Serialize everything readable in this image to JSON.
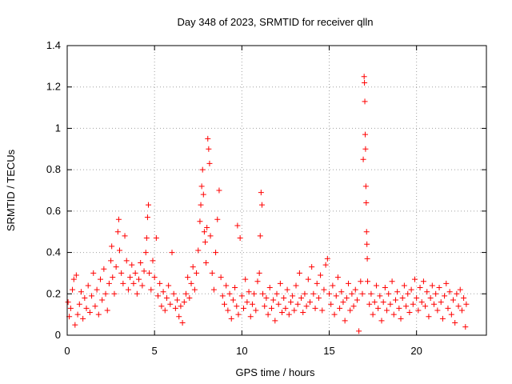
{
  "colors": {
    "series": "#ff0000",
    "axis": "#000000",
    "grid": "#a0a0a0",
    "background": "#ffffff"
  },
  "chart_data": {
    "type": "scatter",
    "title": "Day 348 of 2023, SRMTID for receiver qlln",
    "xlabel": "GPS time / hours",
    "ylabel": "SRMTID / TECUs",
    "xlim": [
      0,
      24
    ],
    "ylim": [
      0,
      1.4
    ],
    "xticks": [
      0,
      5,
      10,
      15,
      20
    ],
    "xtick_labels": [
      "0",
      "5",
      "10",
      "15",
      "20"
    ],
    "yticks": [
      0,
      0.2,
      0.4,
      0.6,
      0.8,
      1,
      1.2,
      1.4
    ],
    "ytick_labels": [
      "0",
      "0.2",
      "0.4",
      "0.6",
      "0.8",
      "1",
      "1.2",
      "1.4"
    ],
    "grid": true,
    "marker": "plus",
    "series": [
      {
        "name": "SRMTID",
        "points": [
          [
            0.05,
            0.16
          ],
          [
            0.12,
            0.09
          ],
          [
            0.2,
            0.13
          ],
          [
            0.3,
            0.22
          ],
          [
            0.38,
            0.27
          ],
          [
            0.45,
            0.05
          ],
          [
            0.52,
            0.29
          ],
          [
            0.6,
            0.1
          ],
          [
            0.7,
            0.15
          ],
          [
            0.8,
            0.21
          ],
          [
            0.9,
            0.08
          ],
          [
            1.0,
            0.18
          ],
          [
            1.1,
            0.13
          ],
          [
            1.2,
            0.24
          ],
          [
            1.3,
            0.11
          ],
          [
            1.4,
            0.19
          ],
          [
            1.5,
            0.3
          ],
          [
            1.6,
            0.14
          ],
          [
            1.7,
            0.22
          ],
          [
            1.8,
            0.1
          ],
          [
            1.9,
            0.27
          ],
          [
            2.0,
            0.17
          ],
          [
            2.1,
            0.32
          ],
          [
            2.2,
            0.2
          ],
          [
            2.3,
            0.12
          ],
          [
            2.4,
            0.25
          ],
          [
            2.5,
            0.36
          ],
          [
            2.55,
            0.43
          ],
          [
            2.6,
            0.28
          ],
          [
            2.7,
            0.2
          ],
          [
            2.8,
            0.33
          ],
          [
            2.9,
            0.5
          ],
          [
            2.95,
            0.56
          ],
          [
            3.0,
            0.41
          ],
          [
            3.1,
            0.3
          ],
          [
            3.2,
            0.25
          ],
          [
            3.3,
            0.48
          ],
          [
            3.4,
            0.36
          ],
          [
            3.5,
            0.22
          ],
          [
            3.6,
            0.28
          ],
          [
            3.7,
            0.34
          ],
          [
            3.8,
            0.25
          ],
          [
            3.9,
            0.3
          ],
          [
            4.0,
            0.2
          ],
          [
            4.1,
            0.27
          ],
          [
            4.2,
            0.35
          ],
          [
            4.3,
            0.24
          ],
          [
            4.4,
            0.31
          ],
          [
            4.5,
            0.4
          ],
          [
            4.55,
            0.47
          ],
          [
            4.6,
            0.57
          ],
          [
            4.65,
            0.63
          ],
          [
            4.7,
            0.3
          ],
          [
            4.8,
            0.22
          ],
          [
            4.9,
            0.36
          ],
          [
            5.0,
            0.28
          ],
          [
            5.1,
            0.47
          ],
          [
            5.2,
            0.19
          ],
          [
            5.3,
            0.25
          ],
          [
            5.4,
            0.14
          ],
          [
            5.5,
            0.21
          ],
          [
            5.6,
            0.12
          ],
          [
            5.7,
            0.18
          ],
          [
            5.8,
            0.24
          ],
          [
            5.9,
            0.15
          ],
          [
            6.0,
            0.4
          ],
          [
            6.1,
            0.2
          ],
          [
            6.2,
            0.13
          ],
          [
            6.3,
            0.17
          ],
          [
            6.4,
            0.09
          ],
          [
            6.5,
            0.14
          ],
          [
            6.6,
            0.06
          ],
          [
            6.7,
            0.16
          ],
          [
            6.8,
            0.2
          ],
          [
            6.9,
            0.28
          ],
          [
            7.0,
            0.18
          ],
          [
            7.1,
            0.25
          ],
          [
            7.2,
            0.33
          ],
          [
            7.3,
            0.22
          ],
          [
            7.4,
            0.3
          ],
          [
            7.5,
            0.41
          ],
          [
            7.6,
            0.55
          ],
          [
            7.65,
            0.63
          ],
          [
            7.7,
            0.72
          ],
          [
            7.75,
            0.8
          ],
          [
            7.8,
            0.68
          ],
          [
            7.85,
            0.5
          ],
          [
            7.9,
            0.45
          ],
          [
            7.95,
            0.35
          ],
          [
            8.0,
            0.52
          ],
          [
            8.05,
            0.95
          ],
          [
            8.1,
            0.9
          ],
          [
            8.15,
            0.83
          ],
          [
            8.2,
            0.48
          ],
          [
            8.3,
            0.3
          ],
          [
            8.4,
            0.22
          ],
          [
            8.5,
            0.4
          ],
          [
            8.6,
            0.56
          ],
          [
            8.7,
            0.7
          ],
          [
            8.8,
            0.28
          ],
          [
            8.9,
            0.19
          ],
          [
            9.0,
            0.15
          ],
          [
            9.1,
            0.24
          ],
          [
            9.2,
            0.12
          ],
          [
            9.3,
            0.2
          ],
          [
            9.4,
            0.08
          ],
          [
            9.5,
            0.17
          ],
          [
            9.6,
            0.23
          ],
          [
            9.7,
            0.14
          ],
          [
            9.75,
            0.53
          ],
          [
            9.8,
            0.1
          ],
          [
            9.9,
            0.47
          ],
          [
            10.0,
            0.19
          ],
          [
            10.1,
            0.13
          ],
          [
            10.2,
            0.27
          ],
          [
            10.3,
            0.16
          ],
          [
            10.4,
            0.21
          ],
          [
            10.5,
            0.09
          ],
          [
            10.6,
            0.15
          ],
          [
            10.7,
            0.2
          ],
          [
            10.8,
            0.12
          ],
          [
            10.9,
            0.26
          ],
          [
            11.0,
            0.3
          ],
          [
            11.05,
            0.48
          ],
          [
            11.1,
            0.69
          ],
          [
            11.15,
            0.63
          ],
          [
            11.2,
            0.2
          ],
          [
            11.3,
            0.14
          ],
          [
            11.4,
            0.18
          ],
          [
            11.5,
            0.1
          ],
          [
            11.6,
            0.23
          ],
          [
            11.7,
            0.13
          ],
          [
            11.8,
            0.17
          ],
          [
            11.9,
            0.07
          ],
          [
            12.0,
            0.2
          ],
          [
            12.1,
            0.15
          ],
          [
            12.2,
            0.25
          ],
          [
            12.3,
            0.11
          ],
          [
            12.4,
            0.18
          ],
          [
            12.5,
            0.13
          ],
          [
            12.6,
            0.22
          ],
          [
            12.7,
            0.1
          ],
          [
            12.8,
            0.16
          ],
          [
            12.9,
            0.19
          ],
          [
            13.0,
            0.12
          ],
          [
            13.1,
            0.24
          ],
          [
            13.2,
            0.15
          ],
          [
            13.3,
            0.3
          ],
          [
            13.4,
            0.18
          ],
          [
            13.5,
            0.11
          ],
          [
            13.6,
            0.2
          ],
          [
            13.7,
            0.14
          ],
          [
            13.8,
            0.27
          ],
          [
            13.9,
            0.16
          ],
          [
            14.0,
            0.33
          ],
          [
            14.1,
            0.2
          ],
          [
            14.2,
            0.13
          ],
          [
            14.3,
            0.25
          ],
          [
            14.4,
            0.18
          ],
          [
            14.5,
            0.29
          ],
          [
            14.6,
            0.12
          ],
          [
            14.7,
            0.22
          ],
          [
            14.8,
            0.34
          ],
          [
            14.9,
            0.37
          ],
          [
            15.0,
            0.2
          ],
          [
            15.1,
            0.15
          ],
          [
            15.2,
            0.24
          ],
          [
            15.3,
            0.1
          ],
          [
            15.4,
            0.19
          ],
          [
            15.5,
            0.28
          ],
          [
            15.6,
            0.13
          ],
          [
            15.7,
            0.21
          ],
          [
            15.8,
            0.16
          ],
          [
            15.9,
            0.07
          ],
          [
            16.0,
            0.18
          ],
          [
            16.1,
            0.25
          ],
          [
            16.2,
            0.12
          ],
          [
            16.3,
            0.2
          ],
          [
            16.4,
            0.14
          ],
          [
            16.5,
            0.22
          ],
          [
            16.6,
            0.17
          ],
          [
            16.7,
            0.02
          ],
          [
            16.8,
            0.26
          ],
          [
            16.9,
            0.2
          ],
          [
            16.95,
            0.85
          ],
          [
            17.0,
            1.25
          ],
          [
            17.02,
            1.22
          ],
          [
            17.04,
            1.13
          ],
          [
            17.06,
            0.97
          ],
          [
            17.08,
            0.9
          ],
          [
            17.1,
            0.72
          ],
          [
            17.12,
            0.64
          ],
          [
            17.14,
            0.5
          ],
          [
            17.16,
            0.44
          ],
          [
            17.18,
            0.37
          ],
          [
            17.2,
            0.26
          ],
          [
            17.3,
            0.15
          ],
          [
            17.4,
            0.2
          ],
          [
            17.5,
            0.1
          ],
          [
            17.6,
            0.16
          ],
          [
            17.7,
            0.24
          ],
          [
            17.8,
            0.13
          ],
          [
            17.9,
            0.19
          ],
          [
            18.0,
            0.07
          ],
          [
            18.1,
            0.16
          ],
          [
            18.2,
            0.23
          ],
          [
            18.3,
            0.12
          ],
          [
            18.4,
            0.2
          ],
          [
            18.5,
            0.15
          ],
          [
            18.6,
            0.26
          ],
          [
            18.7,
            0.1
          ],
          [
            18.8,
            0.17
          ],
          [
            18.9,
            0.21
          ],
          [
            19.0,
            0.13
          ],
          [
            19.1,
            0.08
          ],
          [
            19.2,
            0.18
          ],
          [
            19.3,
            0.24
          ],
          [
            19.4,
            0.14
          ],
          [
            19.5,
            0.2
          ],
          [
            19.6,
            0.11
          ],
          [
            19.7,
            0.22
          ],
          [
            19.8,
            0.15
          ],
          [
            19.9,
            0.27
          ],
          [
            20.0,
            0.18
          ],
          [
            20.1,
            0.12
          ],
          [
            20.2,
            0.23
          ],
          [
            20.3,
            0.16
          ],
          [
            20.4,
            0.26
          ],
          [
            20.5,
            0.14
          ],
          [
            20.6,
            0.21
          ],
          [
            20.7,
            0.09
          ],
          [
            20.8,
            0.18
          ],
          [
            20.9,
            0.24
          ],
          [
            21.0,
            0.15
          ],
          [
            21.1,
            0.2
          ],
          [
            21.2,
            0.12
          ],
          [
            21.3,
            0.23
          ],
          [
            21.4,
            0.16
          ],
          [
            21.5,
            0.08
          ],
          [
            21.6,
            0.19
          ],
          [
            21.7,
            0.25
          ],
          [
            21.8,
            0.13
          ],
          [
            21.9,
            0.21
          ],
          [
            22.0,
            0.1
          ],
          [
            22.1,
            0.17
          ],
          [
            22.2,
            0.06
          ],
          [
            22.3,
            0.2
          ],
          [
            22.4,
            0.14
          ],
          [
            22.5,
            0.22
          ],
          [
            22.6,
            0.12
          ],
          [
            22.7,
            0.18
          ],
          [
            22.8,
            0.04
          ],
          [
            22.85,
            0.15
          ]
        ]
      }
    ]
  }
}
